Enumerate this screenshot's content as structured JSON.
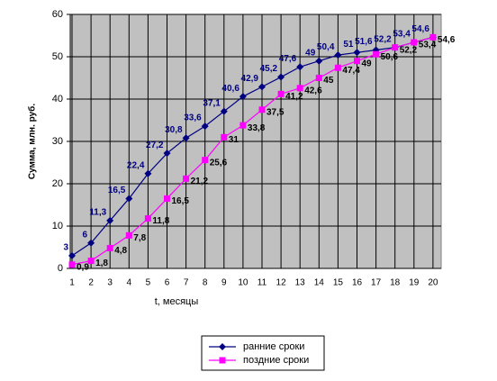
{
  "chart_data": {
    "type": "line",
    "x_label": "t, месяцы",
    "y_label": "Сумма, млн. руб.",
    "categories": [
      1,
      2,
      3,
      4,
      5,
      6,
      7,
      8,
      9,
      10,
      11,
      12,
      13,
      14,
      15,
      16,
      17,
      18,
      19,
      20
    ],
    "ylim": [
      0,
      60
    ],
    "yticks": [
      0,
      10,
      20,
      30,
      40,
      50,
      60
    ],
    "grid": true,
    "legend": "bottom",
    "series": [
      {
        "name": "ранние сроки",
        "color": "#000080",
        "marker": "diamond",
        "values": [
          3,
          6,
          11.3,
          16.5,
          22.4,
          27.2,
          30.8,
          33.6,
          37.1,
          40.6,
          42.9,
          45.2,
          47.6,
          49,
          50.4,
          51,
          51.6,
          52.2,
          53.4,
          54.6
        ],
        "value_labels": [
          "3",
          "6",
          "11,3",
          "16,5",
          "22,4",
          "27,2",
          "30,8",
          "33,6",
          "37,1",
          "40,6",
          "42,9",
          "45,2",
          "47,6",
          "49",
          "50,4",
          "51",
          "51,6",
          "52,2",
          "53,4",
          "54,6"
        ]
      },
      {
        "name": "поздние сроки",
        "color": "#ff00ff",
        "marker": "square",
        "values": [
          0.9,
          1.8,
          4.8,
          7.8,
          11.8,
          16.5,
          21.2,
          25.6,
          31,
          33.8,
          37.5,
          41.2,
          42.6,
          45,
          47.4,
          49,
          50.6,
          52.2,
          53.4,
          54.6
        ],
        "value_labels": [
          "0,9",
          "1,8",
          "4,8",
          "7,8",
          "11,8",
          "16,5",
          "21,2",
          "25,6",
          "31",
          "33,8",
          "37,5",
          "41,2",
          "42,6",
          "45",
          "47,4",
          "49",
          "50,6",
          "52,2",
          "53,4",
          "54,6"
        ]
      }
    ]
  }
}
